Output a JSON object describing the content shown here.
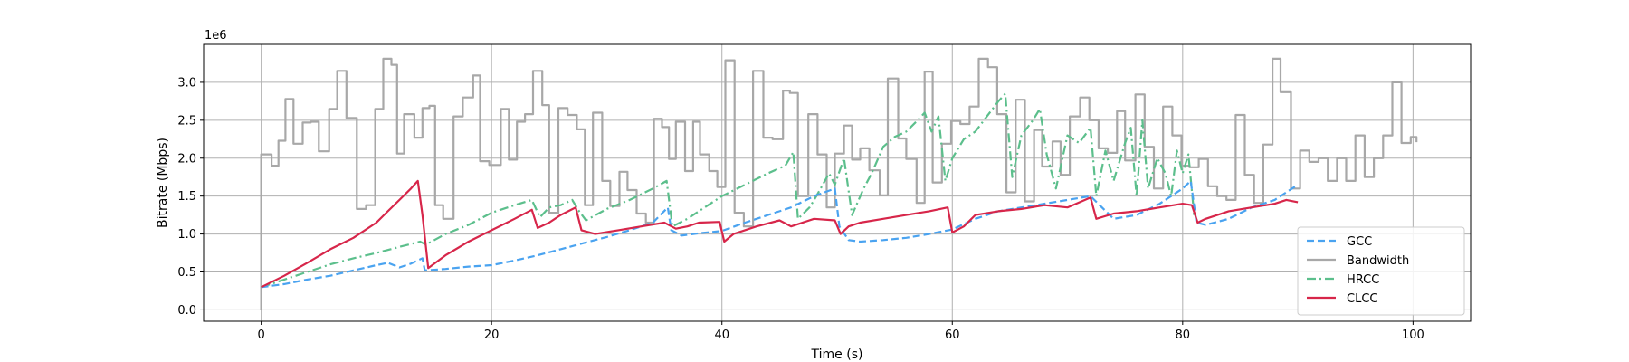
{
  "chart_data": {
    "type": "line",
    "xlabel": "Time (s)",
    "ylabel": "Bitrate (Mbps)",
    "y_offset_text": "1e6",
    "xlim": [
      -5,
      105
    ],
    "ylim": [
      -150000,
      3500000
    ],
    "xticks": [
      0,
      20,
      40,
      60,
      80,
      100
    ],
    "xtick_labels": [
      "0",
      "20",
      "40",
      "60",
      "80",
      "100"
    ],
    "yticks": [
      0,
      500000,
      1000000,
      1500000,
      2000000,
      2500000,
      3000000
    ],
    "ytick_labels": [
      "0.0",
      "0.5",
      "1.0",
      "1.5",
      "2.0",
      "2.5",
      "3.0"
    ],
    "grid": true,
    "legend_position": "lower-right",
    "series": [
      {
        "name": "GCC",
        "color": "#4aa3f0",
        "style": "dashed",
        "x": [
          0,
          2,
          4,
          6,
          8,
          10,
          11,
          12,
          13,
          14,
          14.2,
          16,
          18,
          20,
          22,
          24,
          26,
          28,
          30,
          32,
          34,
          35.3,
          35.6,
          36.5,
          38,
          40,
          42,
          44,
          46,
          48,
          49.8,
          50.2,
          51,
          52,
          54,
          56,
          58,
          60,
          62,
          64,
          66,
          68,
          70,
          72,
          74,
          76,
          78,
          80,
          80.7,
          81.2,
          82,
          84,
          86,
          88,
          90
        ],
        "y": [
          300000,
          340000,
          400000,
          450000,
          520000,
          590000,
          620000,
          560000,
          610000,
          680000,
          520000,
          540000,
          570000,
          590000,
          650000,
          720000,
          800000,
          880000,
          960000,
          1050000,
          1150000,
          1350000,
          1050000,
          980000,
          1010000,
          1040000,
          1150000,
          1250000,
          1350000,
          1500000,
          1600000,
          1100000,
          920000,
          900000,
          920000,
          950000,
          1000000,
          1060000,
          1200000,
          1300000,
          1350000,
          1400000,
          1450000,
          1500000,
          1200000,
          1250000,
          1400000,
          1600000,
          1700000,
          1150000,
          1120000,
          1200000,
          1350000,
          1450000,
          1650000
        ]
      },
      {
        "name": "Bandwidth",
        "color": "#a8a8a8",
        "style": "solid",
        "step": true,
        "x": [
          0,
          0.9,
          1.5,
          2.1,
          2.8,
          3.6,
          4.3,
          5,
          5.9,
          6.6,
          7.4,
          8.3,
          9.1,
          9.9,
          10.6,
          11.3,
          11.8,
          12.4,
          13.3,
          14,
          14.6,
          15.1,
          15.8,
          16.7,
          17.5,
          18.4,
          19,
          19.8,
          20.8,
          21.5,
          22.2,
          22.9,
          23.6,
          24.4,
          25,
          25.8,
          26.6,
          27.4,
          28.1,
          28.8,
          29.6,
          30.3,
          31.1,
          31.8,
          32.6,
          33.4,
          34.1,
          34.8,
          35.4,
          36,
          36.8,
          37.5,
          38.1,
          38.9,
          39.6,
          40.3,
          41.1,
          41.9,
          42.7,
          43.6,
          44.4,
          45.3,
          45.9,
          46.6,
          47.5,
          48.3,
          49.1,
          49.8,
          50.6,
          51.3,
          52,
          52.8,
          53.7,
          54.4,
          55.3,
          56,
          56.9,
          57.6,
          58.3,
          59.1,
          59.9,
          60.7,
          61.5,
          62.3,
          63.1,
          63.9,
          64.7,
          65.5,
          66.3,
          67.1,
          67.8,
          68.7,
          69.4,
          70.2,
          71.1,
          71.9,
          72.7,
          73.5,
          74.3,
          75,
          75.9,
          76.7,
          77.5,
          78.3,
          79.1,
          79.9,
          80.6,
          81.4,
          82.2,
          83,
          83.8,
          84.6,
          85.4,
          86.2,
          87,
          87.8,
          88.5,
          89.4,
          90.2,
          91,
          91.8,
          92.6,
          93.4,
          94.2,
          95,
          95.8,
          96.6,
          97.4,
          98.2,
          99,
          99.8,
          100.3
        ],
        "y": [
          2050000,
          1900000,
          2230000,
          2780000,
          2190000,
          2470000,
          2480000,
          2090000,
          2650000,
          3150000,
          2530000,
          1330000,
          1380000,
          2650000,
          3310000,
          3230000,
          2060000,
          2580000,
          2270000,
          2660000,
          2690000,
          1380000,
          1200000,
          2550000,
          2800000,
          3090000,
          1960000,
          1910000,
          2650000,
          1980000,
          2480000,
          2580000,
          3150000,
          2700000,
          1280000,
          2660000,
          2570000,
          2380000,
          1380000,
          2600000,
          1700000,
          1370000,
          1820000,
          1580000,
          1270000,
          1150000,
          2520000,
          2410000,
          1990000,
          2480000,
          1830000,
          2480000,
          2050000,
          1830000,
          1620000,
          3290000,
          1280000,
          1100000,
          3150000,
          2270000,
          2250000,
          2890000,
          2860000,
          1500000,
          2580000,
          2050000,
          1350000,
          2060000,
          2430000,
          1980000,
          2130000,
          1840000,
          1510000,
          3050000,
          2260000,
          1990000,
          1410000,
          3140000,
          1680000,
          2190000,
          2490000,
          2450000,
          2680000,
          3310000,
          3200000,
          2580000,
          1550000,
          2770000,
          1430000,
          2370000,
          1890000,
          2220000,
          1780000,
          2550000,
          2800000,
          2500000,
          2130000,
          2070000,
          2620000,
          1970000,
          2840000,
          2150000,
          1600000,
          2680000,
          2300000,
          1900000,
          1880000,
          1990000,
          1630000,
          1500000,
          1450000,
          2570000,
          1780000,
          1410000,
          2180000,
          3310000,
          2870000,
          1600000,
          2100000,
          1950000,
          2000000,
          1700000,
          2000000,
          1700000,
          2300000,
          1750000,
          2000000,
          2300000,
          3000000,
          2200000,
          2280000,
          2210000
        ]
      },
      {
        "name": "HRCC",
        "color": "#5cbf8c",
        "style": "dashdot",
        "x": [
          0,
          2,
          4,
          6,
          8,
          10,
          12,
          13.8,
          14.3,
          16,
          18,
          20,
          22,
          23.5,
          24.2,
          25,
          26,
          27,
          27.6,
          28.2,
          30,
          32,
          34,
          35.2,
          35.7,
          37,
          38.5,
          40,
          42,
          44,
          45.5,
          46.2,
          46.6,
          47.6,
          48.2,
          49.3,
          49.8,
          50.6,
          51.3,
          52.3,
          53,
          54,
          55,
          56,
          57,
          57.6,
          58.2,
          58.8,
          59.4,
          60,
          61,
          62,
          63,
          64,
          64.6,
          65.2,
          66,
          67,
          67.6,
          68.2,
          69,
          70,
          71,
          72,
          72.5,
          73.3,
          74,
          75,
          75.5,
          76,
          76.5,
          77,
          77.8,
          78.5,
          79,
          79.5,
          80,
          80.5,
          81
        ],
        "y": [
          300000,
          400000,
          500000,
          600000,
          680000,
          750000,
          830000,
          900000,
          860000,
          1000000,
          1120000,
          1280000,
          1380000,
          1450000,
          1220000,
          1350000,
          1380000,
          1450000,
          1300000,
          1180000,
          1330000,
          1450000,
          1600000,
          1700000,
          1100000,
          1200000,
          1350000,
          1500000,
          1650000,
          1800000,
          1900000,
          2080000,
          1200000,
          1350000,
          1500000,
          1800000,
          1650000,
          2000000,
          1250000,
          1600000,
          1800000,
          2150000,
          2280000,
          2350000,
          2500000,
          2600000,
          2350000,
          2550000,
          1700000,
          2000000,
          2250000,
          2350000,
          2550000,
          2750000,
          2850000,
          1750000,
          2300000,
          2500000,
          2650000,
          2050000,
          1600000,
          2300000,
          2200000,
          2400000,
          1500000,
          2100000,
          1700000,
          2200000,
          2400000,
          1500000,
          2500000,
          1600000,
          2000000,
          1800000,
          1500000,
          2100000,
          1800000,
          2050000,
          1250000
        ]
      },
      {
        "name": "CLCC",
        "color": "#d7264a",
        "style": "solid",
        "x": [
          0,
          2,
          4,
          6,
          8,
          10,
          11,
          12,
          13,
          13.6,
          14,
          14.5,
          16,
          18,
          20,
          22,
          23.5,
          24,
          25,
          26,
          27.3,
          27.8,
          29,
          31,
          33,
          35,
          36,
          37,
          38,
          39.8,
          40.2,
          41,
          43,
          45,
          46,
          48,
          49.8,
          50.3,
          51,
          52,
          54,
          56,
          58,
          59.6,
          60,
          61,
          62,
          64,
          66,
          68,
          70,
          72,
          72.5,
          74,
          76,
          78,
          80,
          80.8,
          81.3,
          82,
          84,
          86,
          88,
          89,
          90
        ],
        "y": [
          300000,
          450000,
          620000,
          800000,
          950000,
          1150000,
          1300000,
          1450000,
          1600000,
          1700000,
          1250000,
          550000,
          720000,
          900000,
          1050000,
          1200000,
          1320000,
          1080000,
          1150000,
          1250000,
          1350000,
          1050000,
          1000000,
          1050000,
          1100000,
          1150000,
          1070000,
          1100000,
          1150000,
          1160000,
          900000,
          1000000,
          1100000,
          1180000,
          1100000,
          1200000,
          1180000,
          1000000,
          1100000,
          1150000,
          1200000,
          1250000,
          1300000,
          1350000,
          1020000,
          1100000,
          1250000,
          1300000,
          1330000,
          1380000,
          1350000,
          1480000,
          1200000,
          1270000,
          1300000,
          1350000,
          1400000,
          1380000,
          1150000,
          1200000,
          1300000,
          1350000,
          1400000,
          1450000,
          1420000
        ]
      }
    ]
  }
}
